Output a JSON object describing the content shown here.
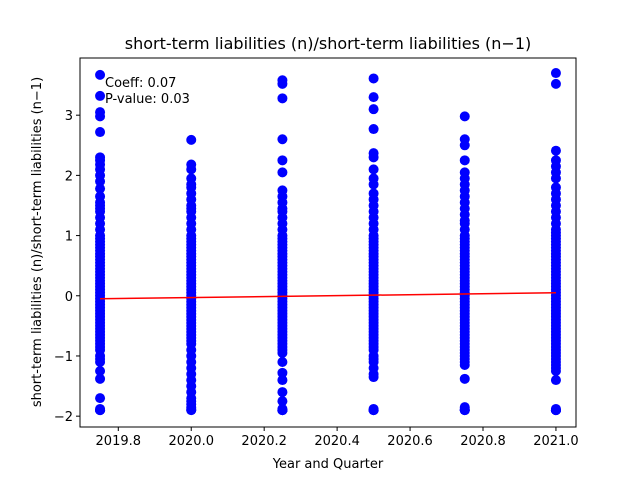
{
  "chart_data": {
    "type": "scatter",
    "title": "short-term liabilities (n)/short-term liabilities (n−1)",
    "xlabel": "Year and Quarter",
    "ylabel": "short-term liabilities (n)/short-term liabilities (n−1)",
    "xlim": [
      2019.695,
      2021.055
    ],
    "ylim": [
      -2.18,
      3.95
    ],
    "xticks": [
      2019.8,
      2020.0,
      2020.2,
      2020.4,
      2020.6,
      2020.8,
      2021.0
    ],
    "xtick_labels": [
      "2019.8",
      "2020.0",
      "2020.2",
      "2020.4",
      "2020.6",
      "2020.8",
      "2021.0"
    ],
    "yticks": [
      -2,
      -1,
      0,
      1,
      2,
      3
    ],
    "ytick_labels": [
      "−2",
      "−1",
      "0",
      "1",
      "2",
      "3"
    ],
    "grid": false,
    "annotations": [
      "Coeff: 0.07",
      "P-value: 0.03"
    ],
    "point_color": "#0000ff",
    "line_color": "#ff0000",
    "series": [
      {
        "x": [
          2019.75,
          2019.75,
          2019.75,
          2019.75,
          2019.75,
          2019.75,
          2019.75,
          2019.75,
          2019.75,
          2019.75,
          2019.75,
          2019.75,
          2019.75,
          2019.75,
          2019.75,
          2019.75,
          2019.75,
          2019.75,
          2019.75,
          2019.75,
          2019.75,
          2019.75,
          2019.75,
          2019.75,
          2019.75,
          2019.75,
          2019.75,
          2019.75,
          2019.75,
          2019.75,
          2019.75,
          2019.75,
          2019.75,
          2019.75,
          2019.75,
          2019.75,
          2019.75,
          2019.75,
          2019.75,
          2019.75,
          2019.75,
          2019.75,
          2019.75,
          2019.75,
          2019.75,
          2019.75,
          2019.75,
          2019.75,
          2019.75,
          2019.75,
          2019.75,
          2019.75,
          2019.75,
          2019.75,
          2019.75,
          2019.75,
          2019.75,
          2019.75,
          2019.75,
          2019.75,
          2019.75,
          2019.75,
          2019.75,
          2019.75,
          2019.75,
          2019.75,
          2019.75,
          2019.75,
          2019.75,
          2019.75,
          2020.0,
          2020.0,
          2020.0,
          2020.0,
          2020.0,
          2020.0,
          2020.0,
          2020.0,
          2020.0,
          2020.0,
          2020.0,
          2020.0,
          2020.0,
          2020.0,
          2020.0,
          2020.0,
          2020.0,
          2020.0,
          2020.0,
          2020.0,
          2020.0,
          2020.0,
          2020.0,
          2020.0,
          2020.0,
          2020.0,
          2020.0,
          2020.0,
          2020.0,
          2020.0,
          2020.0,
          2020.0,
          2020.0,
          2020.0,
          2020.0,
          2020.0,
          2020.0,
          2020.0,
          2020.0,
          2020.0,
          2020.0,
          2020.0,
          2020.0,
          2020.0,
          2020.0,
          2020.0,
          2020.0,
          2020.0,
          2020.0,
          2020.0,
          2020.0,
          2020.0,
          2020.0,
          2020.0,
          2020.0,
          2020.0,
          2020.0,
          2020.0,
          2020.0,
          2020.0,
          2020.0,
          2020.0,
          2020.0,
          2020.0,
          2020.0,
          2020.0,
          2020.25,
          2020.25,
          2020.25,
          2020.25,
          2020.25,
          2020.25,
          2020.25,
          2020.25,
          2020.25,
          2020.25,
          2020.25,
          2020.25,
          2020.25,
          2020.25,
          2020.25,
          2020.25,
          2020.25,
          2020.25,
          2020.25,
          2020.25,
          2020.25,
          2020.25,
          2020.25,
          2020.25,
          2020.25,
          2020.25,
          2020.25,
          2020.25,
          2020.25,
          2020.25,
          2020.25,
          2020.25,
          2020.25,
          2020.25,
          2020.25,
          2020.25,
          2020.25,
          2020.25,
          2020.25,
          2020.25,
          2020.25,
          2020.25,
          2020.25,
          2020.25,
          2020.25,
          2020.25,
          2020.25,
          2020.25,
          2020.25,
          2020.25,
          2020.25,
          2020.25,
          2020.25,
          2020.25,
          2020.25,
          2020.25,
          2020.25,
          2020.25,
          2020.25,
          2020.25,
          2020.25,
          2020.25,
          2020.25,
          2020.25,
          2020.25,
          2020.25,
          2020.5,
          2020.5,
          2020.5,
          2020.5,
          2020.5,
          2020.5,
          2020.5,
          2020.5,
          2020.5,
          2020.5,
          2020.5,
          2020.5,
          2020.5,
          2020.5,
          2020.5,
          2020.5,
          2020.5,
          2020.5,
          2020.5,
          2020.5,
          2020.5,
          2020.5,
          2020.5,
          2020.5,
          2020.5,
          2020.5,
          2020.5,
          2020.5,
          2020.5,
          2020.5,
          2020.5,
          2020.5,
          2020.5,
          2020.5,
          2020.5,
          2020.5,
          2020.5,
          2020.5,
          2020.5,
          2020.5,
          2020.5,
          2020.5,
          2020.5,
          2020.5,
          2020.5,
          2020.5,
          2020.5,
          2020.5,
          2020.5,
          2020.5,
          2020.5,
          2020.5,
          2020.5,
          2020.5,
          2020.5,
          2020.5,
          2020.5,
          2020.5,
          2020.5,
          2020.5,
          2020.5,
          2020.5,
          2020.5,
          2020.5,
          2020.5,
          2020.5,
          2020.75,
          2020.75,
          2020.75,
          2020.75,
          2020.75,
          2020.75,
          2020.75,
          2020.75,
          2020.75,
          2020.75,
          2020.75,
          2020.75,
          2020.75,
          2020.75,
          2020.75,
          2020.75,
          2020.75,
          2020.75,
          2020.75,
          2020.75,
          2020.75,
          2020.75,
          2020.75,
          2020.75,
          2020.75,
          2020.75,
          2020.75,
          2020.75,
          2020.75,
          2020.75,
          2020.75,
          2020.75,
          2020.75,
          2020.75,
          2020.75,
          2020.75,
          2020.75,
          2020.75,
          2020.75,
          2020.75,
          2020.75,
          2020.75,
          2020.75,
          2020.75,
          2020.75,
          2020.75,
          2020.75,
          2020.75,
          2020.75,
          2020.75,
          2020.75,
          2020.75,
          2020.75,
          2020.75,
          2020.75,
          2020.75,
          2020.75,
          2020.75,
          2020.75,
          2020.75,
          2020.75,
          2020.75,
          2020.75,
          2020.75,
          2020.75,
          2020.75,
          2021.0,
          2021.0,
          2021.0,
          2021.0,
          2021.0,
          2021.0,
          2021.0,
          2021.0,
          2021.0,
          2021.0,
          2021.0,
          2021.0,
          2021.0,
          2021.0,
          2021.0,
          2021.0,
          2021.0,
          2021.0,
          2021.0,
          2021.0,
          2021.0,
          2021.0,
          2021.0,
          2021.0,
          2021.0,
          2021.0,
          2021.0,
          2021.0,
          2021.0,
          2021.0,
          2021.0,
          2021.0,
          2021.0,
          2021.0,
          2021.0,
          2021.0,
          2021.0,
          2021.0,
          2021.0,
          2021.0,
          2021.0,
          2021.0,
          2021.0,
          2021.0,
          2021.0,
          2021.0,
          2021.0,
          2021.0,
          2021.0,
          2021.0,
          2021.0,
          2021.0,
          2021.0,
          2021.0,
          2021.0,
          2021.0,
          2021.0,
          2021.0,
          2021.0,
          2021.0,
          2021.0,
          2021.0,
          2021.0,
          2021.0,
          2021.0,
          2021.0,
          2021.0,
          2021.0,
          2021.0,
          2021.0
        ],
        "y": [
          3.67,
          3.32,
          3.05,
          2.98,
          2.72,
          2.3,
          2.25,
          2.18,
          2.1,
          2.0,
          1.9,
          1.78,
          1.65,
          1.55,
          1.5,
          1.45,
          1.4,
          1.3,
          1.2,
          1.1,
          1.0,
          0.95,
          0.9,
          0.85,
          0.8,
          0.75,
          0.7,
          0.65,
          0.6,
          0.55,
          0.5,
          0.45,
          0.4,
          0.35,
          0.3,
          0.25,
          0.2,
          0.15,
          0.1,
          0.05,
          0.0,
          -0.05,
          -0.1,
          -0.15,
          -0.2,
          -0.25,
          -0.3,
          -0.35,
          -0.4,
          -0.45,
          -0.5,
          -0.55,
          -0.6,
          -0.65,
          -0.7,
          -0.75,
          -0.8,
          -0.85,
          -0.9,
          -1.0,
          -1.05,
          -1.1,
          -1.25,
          -1.38,
          -1.7,
          -1.88,
          -1.9,
          -1.9,
          -1.9,
          -1.9,
          2.59,
          2.18,
          2.1,
          1.95,
          1.85,
          1.8,
          1.7,
          1.6,
          1.5,
          1.45,
          1.4,
          1.3,
          1.2,
          1.1,
          1.0,
          0.95,
          0.9,
          0.85,
          0.8,
          0.75,
          0.7,
          0.65,
          0.6,
          0.55,
          0.5,
          0.45,
          0.4,
          0.35,
          0.3,
          0.25,
          0.2,
          0.15,
          0.1,
          0.05,
          0.0,
          -0.05,
          -0.1,
          -0.15,
          -0.2,
          -0.25,
          -0.3,
          -0.35,
          -0.4,
          -0.45,
          -0.5,
          -0.55,
          -0.6,
          -0.65,
          -0.7,
          -0.75,
          -0.8,
          -0.9,
          -1.0,
          -1.1,
          -1.2,
          -1.3,
          -1.4,
          -1.5,
          -1.6,
          -1.7,
          -1.75,
          -1.8,
          -1.85,
          -1.88,
          -1.9,
          -1.9,
          3.58,
          3.52,
          3.28,
          2.6,
          2.25,
          2.05,
          1.75,
          1.65,
          1.55,
          1.45,
          1.4,
          1.3,
          1.2,
          1.1,
          1.0,
          0.95,
          0.9,
          0.85,
          0.8,
          0.75,
          0.7,
          0.65,
          0.6,
          0.55,
          0.5,
          0.45,
          0.4,
          0.35,
          0.3,
          0.25,
          0.2,
          0.15,
          0.1,
          0.05,
          0.0,
          -0.05,
          -0.1,
          -0.15,
          -0.2,
          -0.25,
          -0.3,
          -0.35,
          -0.4,
          -0.45,
          -0.5,
          -0.55,
          -0.6,
          -0.65,
          -0.7,
          -0.75,
          -0.8,
          -0.85,
          -0.9,
          -0.95,
          -1.1,
          -1.28,
          -1.4,
          -1.6,
          -1.75,
          -1.88,
          -1.9,
          -1.9,
          -1.9,
          -1.9,
          -1.9,
          -1.9,
          3.61,
          3.3,
          3.1,
          2.77,
          2.37,
          2.3,
          2.1,
          1.95,
          1.85,
          1.7,
          1.6,
          1.5,
          1.4,
          1.3,
          1.2,
          1.1,
          1.0,
          0.95,
          0.9,
          0.85,
          0.8,
          0.75,
          0.7,
          0.65,
          0.6,
          0.55,
          0.5,
          0.45,
          0.4,
          0.35,
          0.3,
          0.25,
          0.2,
          0.15,
          0.1,
          0.05,
          0.0,
          -0.05,
          -0.1,
          -0.15,
          -0.2,
          -0.25,
          -0.3,
          -0.35,
          -0.4,
          -0.45,
          -0.5,
          -0.55,
          -0.6,
          -0.65,
          -0.7,
          -0.75,
          -0.8,
          -0.85,
          -0.9,
          -1.0,
          -1.05,
          -1.1,
          -1.2,
          -1.3,
          -1.35,
          -1.88,
          -1.9,
          -1.9,
          -1.9,
          -1.9,
          2.98,
          2.6,
          2.5,
          2.25,
          2.05,
          1.95,
          1.85,
          1.75,
          1.65,
          1.55,
          1.45,
          1.35,
          1.25,
          1.2,
          1.1,
          1.0,
          0.95,
          0.9,
          0.85,
          0.8,
          0.75,
          0.7,
          0.65,
          0.6,
          0.55,
          0.5,
          0.45,
          0.4,
          0.35,
          0.3,
          0.25,
          0.2,
          0.15,
          0.1,
          0.05,
          0.0,
          -0.05,
          -0.1,
          -0.15,
          -0.2,
          -0.25,
          -0.3,
          -0.35,
          -0.4,
          -0.45,
          -0.5,
          -0.55,
          -0.6,
          -0.65,
          -0.7,
          -0.75,
          -0.8,
          -0.85,
          -0.9,
          -0.95,
          -1.0,
          -1.05,
          -1.1,
          -1.15,
          -1.38,
          -1.85,
          -1.88,
          -1.9,
          -1.9,
          -1.9,
          -1.9,
          3.7,
          3.52,
          2.41,
          2.25,
          2.15,
          2.05,
          1.95,
          1.8,
          1.7,
          1.6,
          1.5,
          1.4,
          1.3,
          1.2,
          1.1,
          1.05,
          1.0,
          0.95,
          0.9,
          0.85,
          0.8,
          0.75,
          0.7,
          0.65,
          0.6,
          0.55,
          0.5,
          0.45,
          0.4,
          0.35,
          0.3,
          0.25,
          0.2,
          0.15,
          0.1,
          0.05,
          0.0,
          -0.05,
          -0.1,
          -0.15,
          -0.2,
          -0.25,
          -0.3,
          -0.35,
          -0.4,
          -0.45,
          -0.5,
          -0.55,
          -0.6,
          -0.65,
          -0.7,
          -0.75,
          -0.8,
          -0.85,
          -0.9,
          -0.95,
          -1.0,
          -1.05,
          -1.1,
          -1.15,
          -1.2,
          -1.25,
          -1.4,
          -1.88,
          -1.9,
          -1.9,
          -1.9,
          -1.9,
          -1.9,
          -1.9
        ]
      }
    ],
    "fit_line": {
      "x": [
        2019.75,
        2021.0
      ],
      "y": [
        -0.05,
        0.05
      ]
    }
  }
}
